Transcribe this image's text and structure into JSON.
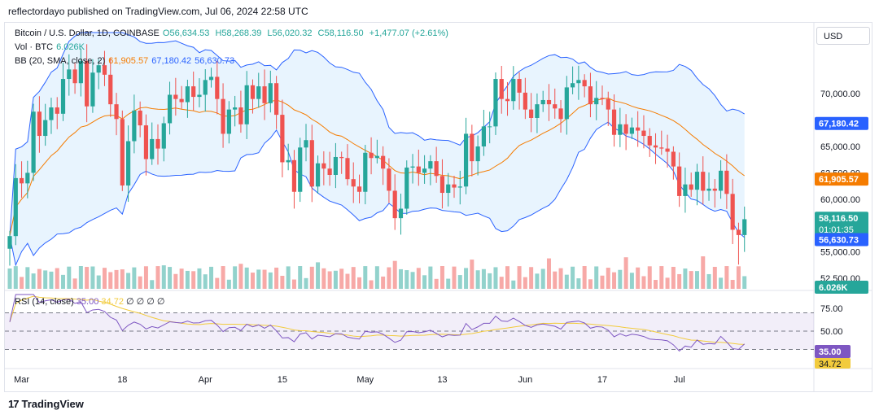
{
  "publisher_line": "reflectordayo published on TradingView.com, Jul 06, 2024 22:58 UTC",
  "legend": {
    "symbol": "Bitcoin / U.S. Dollar, 1D, COINBASE",
    "open": "O56,634.53",
    "high": "H58,268.39",
    "low": "L56,020.32",
    "close": "C58,116.50",
    "change": "+1,477.07 (+2.61%)",
    "vol_label": "Vol · BTC",
    "vol_value": "6.026K",
    "bb_label": "BB (20, SMA, close, 2)",
    "bb_basis": "61,905.57",
    "bb_upper": "67,180.42",
    "bb_lower": "56,630.73"
  },
  "rsi_legend": {
    "label": "RSI (14, close)",
    "rsi": "35.00",
    "ma": "34.72",
    "extra": "∅ ∅ ∅ ∅"
  },
  "currency_button": "USD",
  "footer_brand": "TradingView",
  "colors": {
    "up": "#26a69a",
    "down": "#ef5350",
    "bb_basis": "#f57c00",
    "bb_band": "#2962ff",
    "rsi": "#7e57c2",
    "rsi_ma": "#f2cb3c"
  },
  "chart_data": {
    "type": "candlestick",
    "price_axis": {
      "range": [
        51500,
        75800
      ],
      "ticks": [
        "52,500.00",
        "55,000.00",
        "57,500.00",
        "60,000.00",
        "62,500.00",
        "65,000.00",
        "67,500.00",
        "70,000.00"
      ]
    },
    "price_badges": [
      {
        "label": "67,180.42",
        "value": 67180.42,
        "color": "#2962ff"
      },
      {
        "label": "61,905.57",
        "value": 61905.57,
        "color": "#f57c00"
      },
      {
        "label": "58,116.50",
        "value": 58116.5,
        "color": "#26a69a",
        "sub": "01:01:35"
      },
      {
        "label": "56,630.73",
        "value": 56630.73,
        "color": "#2962ff"
      },
      {
        "label": "6.026K",
        "value": 6.026,
        "color": "#26a69a"
      }
    ],
    "time_axis": {
      "labels": [
        "Mar",
        "18",
        "Apr",
        "15",
        "May",
        "13",
        "Jun",
        "17",
        "Jul"
      ],
      "label_candle_index": [
        2,
        19,
        33,
        46,
        60,
        73,
        87,
        100,
        113
      ]
    },
    "rsi_axis": {
      "ticks": [
        "75.00",
        "50.00",
        "25.00"
      ],
      "band": [
        30,
        70
      ],
      "badges": [
        {
          "label": "35.00",
          "color": "#7e57c2"
        },
        {
          "label": "34.72",
          "color": "#f2cb3c"
        }
      ]
    },
    "closes": [
      56500,
      62000,
      61500,
      62500,
      68300,
      66000,
      67500,
      68700,
      68100,
      71400,
      72300,
      71000,
      73100,
      68800,
      72000,
      72700,
      71800,
      69000,
      67600,
      61300,
      65500,
      68400,
      67000,
      63800,
      65700,
      64800,
      67200,
      69900,
      69500,
      69200,
      70700,
      69700,
      69900,
      71300,
      71600,
      69500,
      66200,
      68500,
      68700,
      67100,
      70800,
      69500,
      70700,
      69100,
      71000,
      68000,
      63500,
      63700,
      60700,
      64900,
      65600,
      61200,
      63400,
      62900,
      62300,
      64000,
      63900,
      61900,
      61200,
      60700,
      64400,
      63900,
      64100,
      62900,
      60800,
      58200,
      59100,
      63000,
      63100,
      62500,
      62900,
      63600,
      62200,
      60600,
      61400,
      61100,
      61200,
      66200,
      63600,
      65000,
      66900,
      66900,
      71400,
      69500,
      69300,
      71400,
      70100,
      68500,
      67700,
      69000,
      69400,
      69000,
      68600,
      67600,
      70600,
      71000,
      71300,
      70700,
      69000,
      69600,
      69500,
      68500,
      66100,
      67100,
      66200,
      66800,
      66500,
      66000,
      65100,
      64900,
      64800,
      64500,
      63100,
      60300,
      61400,
      60900,
      62600,
      60800,
      61000,
      60800,
      62700,
      60500,
      57100,
      56600,
      58100
    ],
    "rsi": {
      "range": [
        10,
        90
      ],
      "line_shape": "see chart"
    }
  }
}
